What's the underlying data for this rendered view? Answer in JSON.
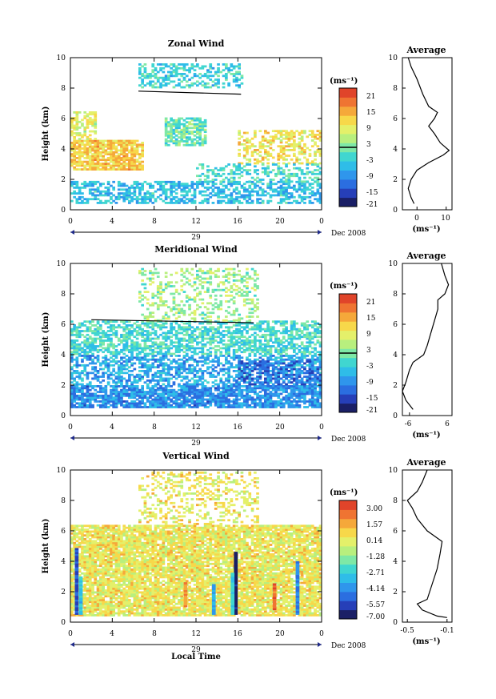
{
  "figure": {
    "date_label": "Dec 2008",
    "day_label": "29",
    "shared_xlabel": "Local Time"
  },
  "chart_data": [
    {
      "type": "heatmap",
      "title": "Zonal Wind",
      "xlabel": "",
      "ylabel": "Height (km)",
      "x_ticks": [
        "0",
        "4",
        "8",
        "12",
        "16",
        "20",
        "0"
      ],
      "y_ticks": [
        "0",
        "2",
        "4",
        "6",
        "8",
        "10"
      ],
      "xlim": [
        0,
        24
      ],
      "ylim": [
        0,
        10
      ],
      "colorbar": {
        "unit": "(ms⁻¹)",
        "ticks": [
          "21",
          "15",
          "9",
          "3",
          "-3",
          "-9",
          "-15",
          "-21"
        ],
        "zero_line": true,
        "colors": [
          "#1a1f66",
          "#263fb8",
          "#2b6ee0",
          "#2f96ec",
          "#2fbde8",
          "#40d6d0",
          "#7ee8a6",
          "#b8ef7e",
          "#e4f06a",
          "#f7d84a",
          "#f5a83a",
          "#ef7432",
          "#e0442a"
        ]
      },
      "regions": [
        {
          "t0": 0,
          "t1": 24,
          "h0": 0.4,
          "h1": 1.8,
          "v": -6,
          "d": 0.55
        },
        {
          "t0": 0,
          "t1": 7,
          "h0": 2.6,
          "h1": 4.6,
          "v": 10,
          "d": 0.85
        },
        {
          "t0": 0,
          "t1": 2.5,
          "h0": 4.6,
          "h1": 6.4,
          "v": 6,
          "d": 0.6
        },
        {
          "t0": 9,
          "t1": 13,
          "h0": 4.2,
          "h1": 6.0,
          "v": -1,
          "d": 0.7
        },
        {
          "t0": 16,
          "t1": 24,
          "h0": 3.0,
          "h1": 5.2,
          "v": 8,
          "d": 0.45
        },
        {
          "t0": 6.5,
          "t1": 16.5,
          "h0": 8.0,
          "h1": 9.6,
          "v": -4,
          "d": 0.45
        },
        {
          "t0": 12,
          "t1": 24,
          "h0": 1.8,
          "h1": 3.0,
          "v": -3,
          "d": 0.35
        }
      ],
      "lines": [
        [
          [
            6.5,
            7.8
          ],
          [
            16.3,
            7.6
          ]
        ]
      ],
      "average": {
        "xlabel": "(ms⁻¹)",
        "title": "Average",
        "xlim": [
          -5,
          12
        ],
        "x_ticks": [
          "0",
          "10"
        ],
        "tick_values": [
          0,
          10
        ],
        "y_ticks": [
          "0",
          "2",
          "4",
          "6",
          "8",
          "10"
        ],
        "profile": [
          [
            -1,
            0.4
          ],
          [
            -2,
            0.8
          ],
          [
            -3,
            1.4
          ],
          [
            -2,
            2.0
          ],
          [
            0,
            2.6
          ],
          [
            4,
            3.1
          ],
          [
            9,
            3.6
          ],
          [
            11,
            3.9
          ],
          [
            8,
            4.4
          ],
          [
            6,
            5.0
          ],
          [
            4,
            5.5
          ],
          [
            6,
            6.0
          ],
          [
            7,
            6.4
          ],
          [
            4,
            6.8
          ],
          [
            2,
            7.6
          ],
          [
            0,
            8.6
          ],
          [
            -2,
            9.4
          ],
          [
            -3,
            10
          ]
        ]
      }
    },
    {
      "type": "heatmap",
      "title": "Meridional Wind",
      "xlabel": "",
      "ylabel": "Height (km)",
      "x_ticks": [
        "0",
        "4",
        "8",
        "12",
        "16",
        "20",
        "0"
      ],
      "y_ticks": [
        "0",
        "2",
        "4",
        "6",
        "8",
        "10"
      ],
      "xlim": [
        0,
        24
      ],
      "ylim": [
        0,
        10
      ],
      "colorbar": {
        "unit": "(ms⁻¹)",
        "ticks": [
          "21",
          "15",
          "9",
          "3",
          "-3",
          "-9",
          "-15",
          "-21"
        ],
        "zero_line": true,
        "colors": [
          "#1a1f66",
          "#263fb8",
          "#2b6ee0",
          "#2f96ec",
          "#2fbde8",
          "#40d6d0",
          "#7ee8a6",
          "#b8ef7e",
          "#e4f06a",
          "#f7d84a",
          "#f5a83a",
          "#ef7432",
          "#e0442a"
        ]
      },
      "regions": [
        {
          "t0": 0,
          "t1": 24,
          "h0": 0.5,
          "h1": 2.0,
          "v": -10,
          "d": 0.8
        },
        {
          "t0": 0,
          "t1": 24,
          "h0": 2.0,
          "h1": 4.0,
          "v": -8,
          "d": 0.55
        },
        {
          "t0": 0,
          "t1": 24,
          "h0": 4.0,
          "h1": 6.2,
          "v": -3,
          "d": 0.6
        },
        {
          "t0": 6.5,
          "t1": 18,
          "h0": 6.2,
          "h1": 9.6,
          "v": 2,
          "d": 0.3
        },
        {
          "t0": 16,
          "t1": 24,
          "h0": 2.0,
          "h1": 3.6,
          "v": -13,
          "d": 0.5
        }
      ],
      "lines": [
        [
          [
            2,
            6.3
          ],
          [
            17.5,
            6.1
          ]
        ]
      ],
      "average": {
        "xlabel": "(ms⁻¹)",
        "title": "Average",
        "xlim": [
          -8,
          6
        ],
        "x_ticks": [
          "-6",
          "6"
        ],
        "tick_values": [
          -6,
          6
        ],
        "y_ticks": [
          "0",
          "2",
          "4",
          "6",
          "8",
          "10"
        ],
        "profile": [
          [
            -5,
            0.4
          ],
          [
            -7,
            1.0
          ],
          [
            -8,
            1.6
          ],
          [
            -7,
            2.2
          ],
          [
            -6,
            3.0
          ],
          [
            -5,
            3.5
          ],
          [
            -2,
            4.0
          ],
          [
            -1,
            4.6
          ],
          [
            0,
            5.4
          ],
          [
            1,
            6.2
          ],
          [
            2,
            7.0
          ],
          [
            2,
            7.6
          ],
          [
            4,
            8.0
          ],
          [
            5,
            8.6
          ],
          [
            4,
            9.2
          ],
          [
            3,
            10
          ]
        ]
      }
    },
    {
      "type": "heatmap",
      "title": "Vertical Wind",
      "xlabel": "Local Time",
      "ylabel": "Height (km)",
      "x_ticks": [
        "0",
        "4",
        "8",
        "12",
        "16",
        "20",
        "0"
      ],
      "y_ticks": [
        "0",
        "2",
        "4",
        "6",
        "8",
        "10"
      ],
      "xlim": [
        0,
        24
      ],
      "ylim": [
        0,
        10
      ],
      "colorbar": {
        "unit": "(ms⁻¹)",
        "ticks": [
          "3.00",
          "1.57",
          "0.14",
          "-1.28",
          "-2.71",
          "-4.14",
          "-5.57",
          "-7.00"
        ],
        "zero_line": false,
        "colors": [
          "#1a1f66",
          "#263fb8",
          "#2b6ee0",
          "#2f96ec",
          "#2fbde8",
          "#40d6d0",
          "#7ee8a6",
          "#b8ef7e",
          "#e4f06a",
          "#f7d84a",
          "#f5a83a",
          "#ef7432",
          "#e0442a"
        ]
      },
      "regions": [
        {
          "t0": 0,
          "t1": 24,
          "h0": 0.4,
          "h1": 6.4,
          "v": -0.2,
          "d": 0.85
        },
        {
          "t0": 6.5,
          "t1": 18,
          "h0": 6.4,
          "h1": 9.8,
          "v": -0.2,
          "d": 0.3
        }
      ],
      "streaks": [
        {
          "t": 0.6,
          "h0": 0.5,
          "h1": 4.8,
          "v": -5.5
        },
        {
          "t": 1.0,
          "h0": 0.5,
          "h1": 3.0,
          "v": -3.5
        },
        {
          "t": 13.7,
          "h0": 0.5,
          "h1": 2.4,
          "v": -4.0
        },
        {
          "t": 15.8,
          "h0": 0.5,
          "h1": 4.6,
          "v": -6.8
        },
        {
          "t": 15.5,
          "h0": 0.5,
          "h1": 3.2,
          "v": -3.0
        },
        {
          "t": 21.7,
          "h0": 0.5,
          "h1": 4.0,
          "v": -4.5
        },
        {
          "t": 11.0,
          "h0": 1.0,
          "h1": 2.6,
          "v": 1.5
        },
        {
          "t": 19.5,
          "h0": 0.8,
          "h1": 2.5,
          "v": 2.0
        }
      ],
      "lines": [],
      "average": {
        "xlabel": "(ms⁻¹)",
        "title": "Average",
        "xlim": [
          -0.55,
          -0.05
        ],
        "x_ticks": [
          "-0.5",
          "-0.1"
        ],
        "tick_values": [
          -0.5,
          -0.1
        ],
        "y_ticks": [
          "0",
          "2",
          "4",
          "6",
          "8",
          "10"
        ],
        "profile": [
          [
            -0.1,
            0.3
          ],
          [
            -0.2,
            0.4
          ],
          [
            -0.35,
            0.8
          ],
          [
            -0.4,
            1.2
          ],
          [
            -0.3,
            1.5
          ],
          [
            -0.25,
            2.5
          ],
          [
            -0.2,
            3.5
          ],
          [
            -0.17,
            4.5
          ],
          [
            -0.15,
            5.3
          ],
          [
            -0.3,
            6.0
          ],
          [
            -0.4,
            6.8
          ],
          [
            -0.45,
            7.5
          ],
          [
            -0.5,
            8.0
          ],
          [
            -0.4,
            8.6
          ],
          [
            -0.35,
            9.2
          ],
          [
            -0.3,
            10
          ]
        ]
      }
    }
  ]
}
